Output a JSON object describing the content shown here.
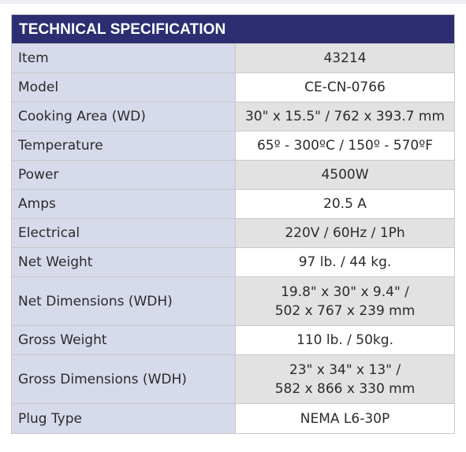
{
  "table": {
    "title": "TECHNICAL SPECIFICATION",
    "rows": [
      {
        "label": "Item",
        "value": "43214"
      },
      {
        "label": "Model",
        "value": "CE-CN-0766"
      },
      {
        "label": "Cooking Area (WD)",
        "value": "30\" x 15.5\" / 762 x 393.7 mm"
      },
      {
        "label": "Temperature",
        "value": "65º - 300ºC / 150º - 570ºF"
      },
      {
        "label": "Power",
        "value": "4500W"
      },
      {
        "label": "Amps",
        "value": "20.5 A"
      },
      {
        "label": "Electrical",
        "value": "220V / 60Hz / 1Ph"
      },
      {
        "label": "Net Weight",
        "value": "97 lb. / 44 kg."
      },
      {
        "label": "Net Dimensions (WDH)",
        "value_line1": "19.8\" x 30\" x 9.4\" /",
        "value_line2": "502 x 767 x 239 mm"
      },
      {
        "label": "Gross Weight",
        "value": "110 lb. / 50kg."
      },
      {
        "label": "Gross Dimensions (WDH)",
        "value_line1": "23\" x 34\" x 13\" /",
        "value_line2": "582 x 866 x 330 mm"
      },
      {
        "label": "Plug Type",
        "value": "NEMA L6-30P"
      }
    ]
  },
  "colors": {
    "header_bg": "#2d2e72",
    "header_text": "#ffffff",
    "label_bg": "#d6daea",
    "value_shaded_bg": "#e2e2e2",
    "value_plain_bg": "#ffffff",
    "border": "#c9c9c9",
    "text": "#2b2b2b"
  }
}
